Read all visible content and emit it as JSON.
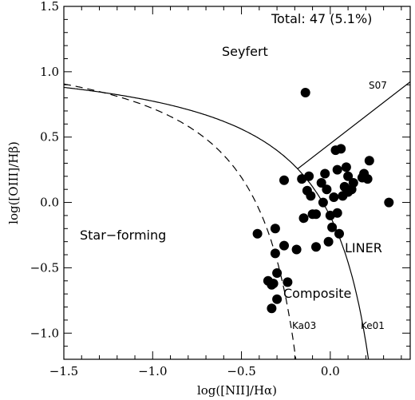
{
  "chart_data": {
    "type": "scatter",
    "xlabel": "log([NII]/Hα)",
    "ylabel": "log([OIII]/Hβ)",
    "xlim": [
      -1.5,
      0.45
    ],
    "ylim": [
      -1.2,
      1.5
    ],
    "xticks": [
      {
        "v": -1.5,
        "label": "−1.5"
      },
      {
        "v": -1.0,
        "label": "−1.0"
      },
      {
        "v": -0.5,
        "label": "−0.5"
      },
      {
        "v": 0.0,
        "label": "0.0"
      }
    ],
    "yticks": [
      {
        "v": -1.0,
        "label": "−1.0"
      },
      {
        "v": -0.5,
        "label": "−0.5"
      },
      {
        "v": 0.0,
        "label": "0.0"
      },
      {
        "v": 0.5,
        "label": "0.5"
      },
      {
        "v": 1.0,
        "label": "1.0"
      },
      {
        "v": 1.5,
        "label": "1.5"
      }
    ],
    "grid": false,
    "annotations": {
      "total": "Total: 47 (5.1%)",
      "seyfert": "Seyfert",
      "star_forming": "Star−forming",
      "liner": "LINER",
      "composite": "Composite",
      "s07": "S07",
      "ka03": "Ka03",
      "ke01": "Ke01"
    },
    "curves": {
      "ke01": "0.61/(x-0.47)+1.19",
      "ka03": "0.61/(x-0.05)+1.3",
      "s07": "1.05*x+0.45"
    },
    "points": [
      {
        "x": -0.14,
        "y": 0.84
      },
      {
        "x": -0.41,
        "y": -0.24
      },
      {
        "x": -0.35,
        "y": -0.6
      },
      {
        "x": -0.33,
        "y": -0.63
      },
      {
        "x": -0.33,
        "y": -0.81
      },
      {
        "x": -0.32,
        "y": -0.62
      },
      {
        "x": -0.31,
        "y": -0.39
      },
      {
        "x": -0.31,
        "y": -0.2
      },
      {
        "x": -0.3,
        "y": -0.54
      },
      {
        "x": -0.3,
        "y": -0.74
      },
      {
        "x": -0.26,
        "y": 0.17
      },
      {
        "x": -0.26,
        "y": -0.33
      },
      {
        "x": -0.24,
        "y": -0.61
      },
      {
        "x": -0.19,
        "y": -0.36
      },
      {
        "x": -0.16,
        "y": 0.18
      },
      {
        "x": -0.15,
        "y": -0.12
      },
      {
        "x": -0.13,
        "y": 0.09
      },
      {
        "x": -0.12,
        "y": 0.2
      },
      {
        "x": -0.11,
        "y": 0.05
      },
      {
        "x": -0.1,
        "y": -0.09
      },
      {
        "x": -0.08,
        "y": -0.34
      },
      {
        "x": -0.08,
        "y": -0.09
      },
      {
        "x": -0.05,
        "y": 0.15
      },
      {
        "x": -0.04,
        "y": 0.0
      },
      {
        "x": -0.03,
        "y": 0.22
      },
      {
        "x": -0.02,
        "y": 0.1
      },
      {
        "x": -0.01,
        "y": -0.3
      },
      {
        "x": 0.0,
        "y": -0.1
      },
      {
        "x": 0.01,
        "y": -0.19
      },
      {
        "x": 0.02,
        "y": 0.04
      },
      {
        "x": 0.03,
        "y": 0.4
      },
      {
        "x": 0.04,
        "y": 0.25
      },
      {
        "x": 0.04,
        "y": -0.08
      },
      {
        "x": 0.05,
        "y": -0.24
      },
      {
        "x": 0.06,
        "y": 0.41
      },
      {
        "x": 0.07,
        "y": 0.05
      },
      {
        "x": 0.08,
        "y": 0.12
      },
      {
        "x": 0.09,
        "y": 0.27
      },
      {
        "x": 0.1,
        "y": 0.2
      },
      {
        "x": 0.1,
        "y": 0.08
      },
      {
        "x": 0.12,
        "y": 0.1
      },
      {
        "x": 0.13,
        "y": 0.15
      },
      {
        "x": 0.18,
        "y": 0.19
      },
      {
        "x": 0.19,
        "y": 0.22
      },
      {
        "x": 0.21,
        "y": 0.18
      },
      {
        "x": 0.22,
        "y": 0.32
      },
      {
        "x": 0.33,
        "y": 0.0
      }
    ]
  }
}
